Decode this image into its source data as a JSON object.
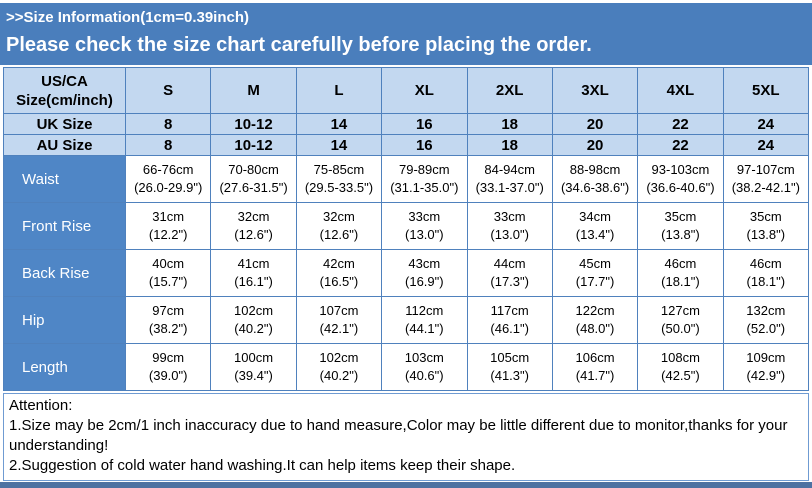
{
  "banner": {
    "title": ">>Size Information(1cm=0.39inch)",
    "subtitle": "Please check the size chart carefully before placing the order."
  },
  "size_chart": {
    "columns": [
      "US/CA\nSize(cm/inch)",
      "S",
      "M",
      "L",
      "XL",
      "2XL",
      "3XL",
      "4XL",
      "5XL"
    ],
    "size_rows": [
      {
        "label": "UK Size",
        "values": [
          "8",
          "10-12",
          "14",
          "16",
          "18",
          "20",
          "22",
          "24"
        ]
      },
      {
        "label": "AU Size",
        "values": [
          "8",
          "10-12",
          "14",
          "16",
          "18",
          "20",
          "22",
          "24"
        ]
      }
    ],
    "measurement_rows": [
      {
        "label": "Waist",
        "values": [
          "66-76cm\n(26.0-29.9\")",
          "70-80cm\n(27.6-31.5\")",
          "75-85cm\n(29.5-33.5\")",
          "79-89cm\n(31.1-35.0\")",
          "84-94cm\n(33.1-37.0\")",
          "88-98cm\n(34.6-38.6\")",
          "93-103cm\n(36.6-40.6\")",
          "97-107cm\n(38.2-42.1\")"
        ]
      },
      {
        "label": "Front Rise",
        "values": [
          "31cm\n(12.2\")",
          "32cm\n(12.6\")",
          "32cm\n(12.6\")",
          "33cm\n(13.0\")",
          "33cm\n(13.0\")",
          "34cm\n(13.4\")",
          "35cm\n(13.8\")",
          "35cm\n(13.8\")"
        ]
      },
      {
        "label": "Back Rise",
        "values": [
          "40cm\n(15.7\")",
          "41cm\n(16.1\")",
          "42cm\n(16.5\")",
          "43cm\n(16.9\")",
          "44cm\n(17.3\")",
          "45cm\n(17.7\")",
          "46cm\n(18.1\")",
          "46cm\n(18.1\")"
        ]
      },
      {
        "label": "Hip",
        "values": [
          "97cm\n(38.2\")",
          "102cm\n(40.2\")",
          "107cm\n(42.1\")",
          "112cm\n(44.1\")",
          "117cm\n(46.1\")",
          "122cm\n(48.0\")",
          "127cm\n(50.0\")",
          "132cm\n(52.0\")"
        ]
      },
      {
        "label": "Length",
        "values": [
          "99cm\n(39.0\")",
          "100cm\n(39.4\")",
          "102cm\n(40.2\")",
          "103cm\n(40.6\")",
          "105cm\n(41.3\")",
          "106cm\n(41.7\")",
          "108cm\n(42.5\")",
          "109cm\n(42.9\")"
        ]
      }
    ]
  },
  "attention": {
    "title": "Attention:",
    "lines": [
      "1.Size may be 2cm/1 inch inaccuracy due to hand measure,Color may be little different due to monitor,thanks for your understanding!",
      "2.Suggestion of cold water hand washing.It can help items keep their shape."
    ]
  },
  "colors": {
    "banner_blue": "#4a7ebc",
    "header_light_blue": "#c3d8f0",
    "row_label_blue": "#4f86c6",
    "border_blue": "#4f81bd",
    "bottom_bar_blue": "#4e72a2",
    "banner_text": "#ffffff",
    "table_text": "#000000"
  }
}
